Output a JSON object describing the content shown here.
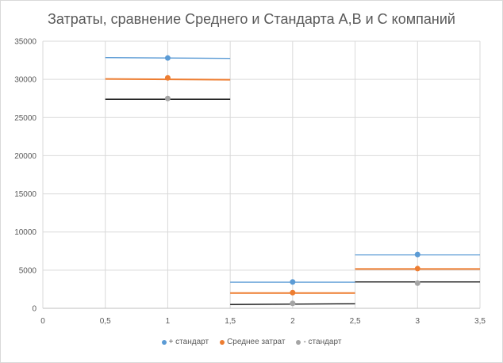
{
  "chart_data": {
    "type": "scatter",
    "title": "Затраты, сравнение Среднего и Стандарта А,В и С компаний",
    "xlim": [
      0,
      3.5
    ],
    "ylim": [
      0,
      35000
    ],
    "x_ticks": [
      "0",
      "0,5",
      "1",
      "1,5",
      "2",
      "2,5",
      "3",
      "3,5"
    ],
    "x_tick_values": [
      0,
      0.5,
      1,
      1.5,
      2,
      2.5,
      3,
      3.5
    ],
    "y_ticks": [
      "0",
      "5000",
      "10000",
      "15000",
      "20000",
      "25000",
      "30000",
      "35000"
    ],
    "y_tick_values": [
      0,
      5000,
      10000,
      15000,
      20000,
      25000,
      30000,
      35000
    ],
    "grid": true,
    "legend_position": "bottom",
    "series": [
      {
        "name": "+ стандарт",
        "color": "#5b9bd5",
        "points": [
          [
            1,
            32800
          ],
          [
            2,
            3450
          ],
          [
            3,
            7050
          ]
        ],
        "segments": [
          [
            0.5,
            32850,
            1.5,
            32750
          ],
          [
            1.5,
            3420,
            2.5,
            3420
          ],
          [
            2.5,
            7000,
            3.5,
            7000
          ]
        ]
      },
      {
        "name": "Среднее затрат",
        "color": "#ed7d31",
        "points": [
          [
            1,
            30200
          ],
          [
            2,
            2050
          ],
          [
            3,
            5200
          ]
        ],
        "segments": [
          [
            0.5,
            30050,
            1.5,
            29950
          ],
          [
            1.5,
            2000,
            2.5,
            2000
          ],
          [
            2.5,
            5150,
            3.5,
            5150
          ]
        ]
      },
      {
        "name": "- стандарт",
        "color": "#a5a5a5",
        "line_color": "#000000",
        "points": [
          [
            1,
            27500
          ],
          [
            2,
            650
          ],
          [
            3,
            3300
          ]
        ],
        "segments": [
          [
            0.5,
            27400,
            1.5,
            27400
          ],
          [
            1.5,
            500,
            2.5,
            600
          ],
          [
            2.5,
            3450,
            3.5,
            3450
          ]
        ]
      }
    ]
  }
}
